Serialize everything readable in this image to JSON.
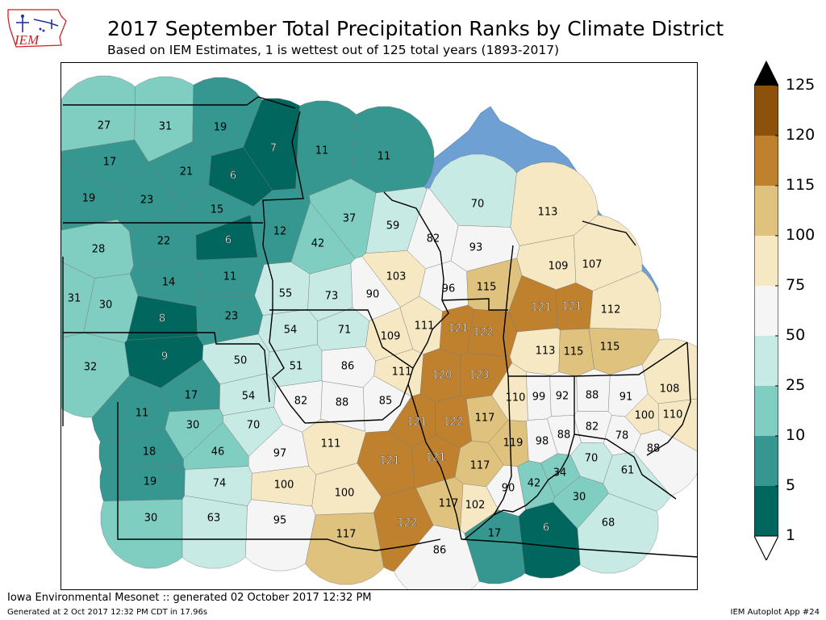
{
  "logo": {
    "text": "IEM"
  },
  "title": "2017 September Total Precipitation Ranks by Climate District",
  "subtitle": "Based on IEM Estimates, 1 is wettest out of 125 total years (1893-2017)",
  "colorbar": {
    "ticks": [
      "1",
      "5",
      "10",
      "25",
      "50",
      "75",
      "100",
      "115",
      "120",
      "125"
    ],
    "colors": [
      "#003c30",
      "#01665e",
      "#35978f",
      "#80cdc1",
      "#c7eae5",
      "#f5f5f5",
      "#f6e8c3",
      "#dfc27d",
      "#bf812d",
      "#8c510a",
      "#543005"
    ],
    "over_color": "#000000",
    "under_color": "#ffffff"
  },
  "districts": [
    {
      "rank": 27
    },
    {
      "rank": 31
    },
    {
      "rank": 19
    },
    {
      "rank": 7
    },
    {
      "rank": 11
    },
    {
      "rank": 11
    },
    {
      "rank": 17
    },
    {
      "rank": 21
    },
    {
      "rank": 6
    },
    {
      "rank": 19
    },
    {
      "rank": 23
    },
    {
      "rank": 15
    },
    {
      "rank": 37
    },
    {
      "rank": 70
    },
    {
      "rank": 113
    },
    {
      "rank": 28
    },
    {
      "rank": 22
    },
    {
      "rank": 6
    },
    {
      "rank": 12
    },
    {
      "rank": 42
    },
    {
      "rank": 59
    },
    {
      "rank": 82
    },
    {
      "rank": 93
    },
    {
      "rank": 109
    },
    {
      "rank": 107
    },
    {
      "rank": 14
    },
    {
      "rank": 11
    },
    {
      "rank": 31
    },
    {
      "rank": 30
    },
    {
      "rank": 55
    },
    {
      "rank": 73
    },
    {
      "rank": 90
    },
    {
      "rank": 103
    },
    {
      "rank": 96
    },
    {
      "rank": 115
    },
    {
      "rank": 8
    },
    {
      "rank": 23
    },
    {
      "rank": 121
    },
    {
      "rank": 121
    },
    {
      "rank": 112
    },
    {
      "rank": 54
    },
    {
      "rank": 71
    },
    {
      "rank": 109
    },
    {
      "rank": 111
    },
    {
      "rank": 121
    },
    {
      "rank": 122
    },
    {
      "rank": 32
    },
    {
      "rank": 9
    },
    {
      "rank": 50
    },
    {
      "rank": 51
    },
    {
      "rank": 86
    },
    {
      "rank": 113
    },
    {
      "rank": 115
    },
    {
      "rank": 115
    },
    {
      "rank": 111
    },
    {
      "rank": 120
    },
    {
      "rank": 123
    },
    {
      "rank": 17
    },
    {
      "rank": 54
    },
    {
      "rank": 82
    },
    {
      "rank": 88
    },
    {
      "rank": 85
    },
    {
      "rank": 110
    },
    {
      "rank": 99
    },
    {
      "rank": 92
    },
    {
      "rank": 88
    },
    {
      "rank": 91
    },
    {
      "rank": 108
    },
    {
      "rank": 11
    },
    {
      "rank": 30
    },
    {
      "rank": 70
    },
    {
      "rank": 121
    },
    {
      "rank": 122
    },
    {
      "rank": 117
    },
    {
      "rank": 82
    },
    {
      "rank": 100
    },
    {
      "rank": 110
    },
    {
      "rank": 111
    },
    {
      "rank": 119
    },
    {
      "rank": 98
    },
    {
      "rank": 88
    },
    {
      "rank": 78
    },
    {
      "rank": 18
    },
    {
      "rank": 46
    },
    {
      "rank": 97
    },
    {
      "rank": 121
    },
    {
      "rank": 121
    },
    {
      "rank": 117
    },
    {
      "rank": 88
    },
    {
      "rank": 19
    },
    {
      "rank": 74
    },
    {
      "rank": 100
    },
    {
      "rank": 34
    },
    {
      "rank": 70
    },
    {
      "rank": 61
    },
    {
      "rank": 100
    },
    {
      "rank": 90
    },
    {
      "rank": 42
    },
    {
      "rank": 30
    },
    {
      "rank": 30
    },
    {
      "rank": 63
    },
    {
      "rank": 95
    },
    {
      "rank": 122
    },
    {
      "rank": 117
    },
    {
      "rank": 102
    },
    {
      "rank": 68
    },
    {
      "rank": 117
    },
    {
      "rank": 17
    },
    {
      "rank": 6
    },
    {
      "rank": 86
    }
  ],
  "footer": {
    "generated_line": "Iowa Environmental Mesonet :: generated 02 October 2017 12:32 PM",
    "timing_line": "Generated at 2 Oct 2017 12:32 PM CDT in 17.96s",
    "app_label": "IEM Autoplot App #24"
  }
}
